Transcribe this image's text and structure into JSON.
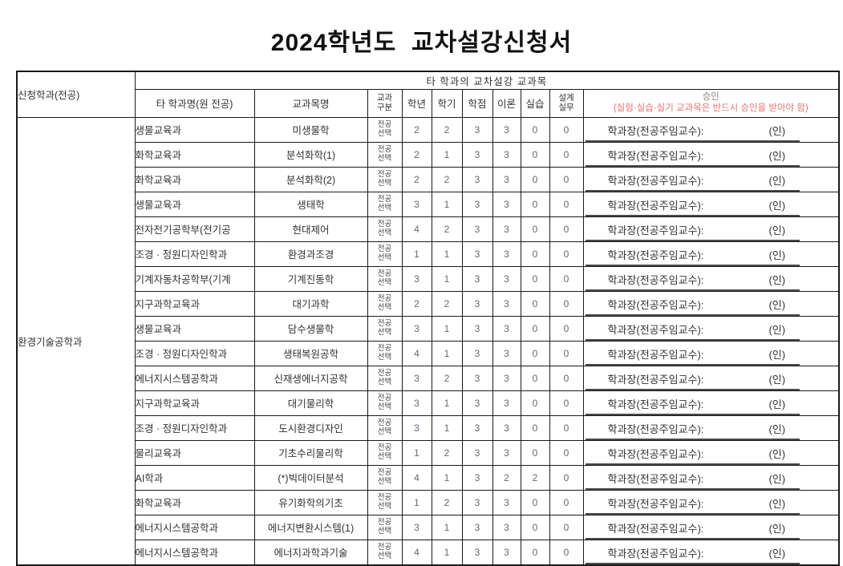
{
  "title": "2024학년도  교차설강신청서",
  "colors": {
    "note_red": "#e87272",
    "approval_title": "#8a8080",
    "border": "#1a1a1a"
  },
  "table": {
    "header": {
      "applicant_dept_label": "신청학과(전공)",
      "group_label": "타 학과의 교차설강 교과목",
      "col_dept": "타 학과명(원 전공)",
      "col_course": "교과목명",
      "col_type_line1": "교과",
      "col_type_line2": "구분",
      "col_year": "학년",
      "col_semester": "학기",
      "col_credit": "학점",
      "col_theory": "이론",
      "col_practice": "실습",
      "col_design_line1": "설계",
      "col_design_line2": "실무",
      "col_approval_title": "승인",
      "col_approval_note": "(실험·실습·실기 교과목은 반드시 승인을 받아야 함)"
    },
    "applicant_dept": "환경기술공학과",
    "type1": "전공",
    "type2": "선택",
    "approval_label": "학과장(전공주임교수):",
    "approval_seal": "(인)",
    "rows": [
      {
        "dept": "생물교육과",
        "course": "미생물학",
        "year": "2",
        "semester": "2",
        "credit": "3",
        "theory": "3",
        "practice": "0",
        "design": "0"
      },
      {
        "dept": "화학교육과",
        "course": "분석화학(1)",
        "year": "2",
        "semester": "1",
        "credit": "3",
        "theory": "3",
        "practice": "0",
        "design": "0"
      },
      {
        "dept": "화학교육과",
        "course": "분석화학(2)",
        "year": "2",
        "semester": "2",
        "credit": "3",
        "theory": "3",
        "practice": "0",
        "design": "0"
      },
      {
        "dept": "생물교육과",
        "course": "생태학",
        "year": "3",
        "semester": "1",
        "credit": "3",
        "theory": "3",
        "practice": "0",
        "design": "0"
      },
      {
        "dept": "전자전기공학부(전기공",
        "course": "현대제어",
        "year": "4",
        "semester": "2",
        "credit": "3",
        "theory": "3",
        "practice": "0",
        "design": "0"
      },
      {
        "dept": "조경 · 정원디자인학과",
        "course": "환경과조경",
        "year": "1",
        "semester": "1",
        "credit": "3",
        "theory": "3",
        "practice": "0",
        "design": "0"
      },
      {
        "dept": "기계자동차공학부(기계",
        "course": "기계진동학",
        "year": "3",
        "semester": "1",
        "credit": "3",
        "theory": "3",
        "practice": "0",
        "design": "0"
      },
      {
        "dept": "지구과학교육과",
        "course": "대기과학",
        "year": "2",
        "semester": "2",
        "credit": "3",
        "theory": "3",
        "practice": "0",
        "design": "0"
      },
      {
        "dept": "생물교육과",
        "course": "담수생물학",
        "year": "3",
        "semester": "1",
        "credit": "3",
        "theory": "3",
        "practice": "0",
        "design": "0"
      },
      {
        "dept": "조경 · 정원디자인학과",
        "course": "생태복원공학",
        "year": "4",
        "semester": "1",
        "credit": "3",
        "theory": "3",
        "practice": "0",
        "design": "0"
      },
      {
        "dept": "에너지시스템공학과",
        "course": "신재생에너지공학",
        "year": "3",
        "semester": "2",
        "credit": "3",
        "theory": "3",
        "practice": "0",
        "design": "0"
      },
      {
        "dept": "지구과학교육과",
        "course": "대기물리학",
        "year": "3",
        "semester": "1",
        "credit": "3",
        "theory": "3",
        "practice": "0",
        "design": "0"
      },
      {
        "dept": "조경 · 정원디자인학과",
        "course": "도시환경디자인",
        "year": "3",
        "semester": "1",
        "credit": "3",
        "theory": "3",
        "practice": "0",
        "design": "0"
      },
      {
        "dept": "물리교육과",
        "course": "기초수리물리학",
        "year": "1",
        "semester": "2",
        "credit": "3",
        "theory": "3",
        "practice": "0",
        "design": "0"
      },
      {
        "dept": "AI학과",
        "course": "(*)빅데이터분석",
        "year": "4",
        "semester": "1",
        "credit": "3",
        "theory": "2",
        "practice": "2",
        "design": "0"
      },
      {
        "dept": "화학교육과",
        "course": "유기화학의기초",
        "year": "1",
        "semester": "2",
        "credit": "3",
        "theory": "3",
        "practice": "0",
        "design": "0"
      },
      {
        "dept": "에너지시스템공학과",
        "course": "에너지변환시스템(1)",
        "year": "3",
        "semester": "1",
        "credit": "3",
        "theory": "3",
        "practice": "0",
        "design": "0"
      },
      {
        "dept": "에너지시스템공학과",
        "course": "에너지과학과기술",
        "year": "4",
        "semester": "1",
        "credit": "3",
        "theory": "3",
        "practice": "0",
        "design": "0"
      }
    ]
  }
}
